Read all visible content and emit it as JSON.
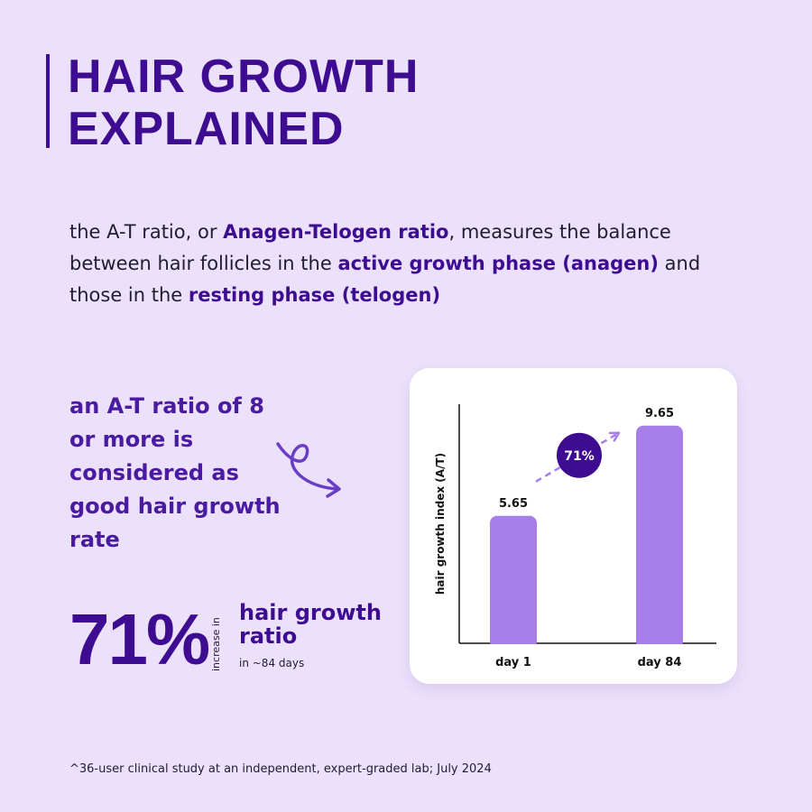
{
  "title": {
    "line1": "HAIR GROWTH",
    "line2": "EXPLAINED"
  },
  "intro": {
    "p1": "the A-T ratio, or ",
    "hl1": "Anagen-Telogen ratio",
    "p2": ", measures the balance between hair follicles in the ",
    "hl2": "active growth phase (anagen)",
    "p3": " and those in the ",
    "hl3": "resting phase (telogen)"
  },
  "ratio_text": {
    "line1": "an A-T ratio of 8",
    "line2": "or more is",
    "line3": "considered as",
    "line4": "good hair growth",
    "line5": "rate"
  },
  "stat": {
    "value": "71%",
    "increase_in": "increase in",
    "label_line1": "hair growth",
    "label_line2": "ratio",
    "sub": "in ~84 days"
  },
  "chart_data": {
    "type": "bar",
    "categories": [
      "day 1",
      "day 84"
    ],
    "values": [
      5.65,
      9.65
    ],
    "value_labels": [
      "5.65",
      "9.65"
    ],
    "ylabel": "hair growth index (A/T)",
    "ylim": [
      0,
      10.6
    ],
    "annotation": "71%",
    "bar_color": "#a77ee8",
    "badge_color": "#3d0c91",
    "arrow_color": "#a77ee8",
    "grid": false
  },
  "footnote": "^36-user clinical study at an independent, expert-graded lab; July 2024",
  "colors": {
    "background": "#ebe1fb",
    "accent_dark": "#3d0c91",
    "accent_light": "#a77ee8",
    "text": "#231c30"
  }
}
